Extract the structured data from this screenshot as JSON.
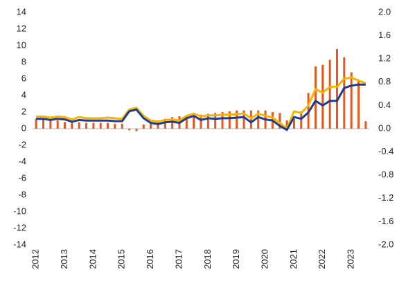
{
  "chart_data": {
    "type": "combo",
    "categories": [
      "2012",
      null,
      null,
      null,
      "2013",
      null,
      null,
      null,
      "2014",
      null,
      null,
      null,
      "2015",
      null,
      null,
      null,
      "2016",
      null,
      null,
      null,
      "2017",
      null,
      null,
      null,
      "2018",
      null,
      null,
      null,
      "2019",
      null,
      null,
      null,
      "2020",
      null,
      null,
      null,
      "2021",
      null,
      null,
      null,
      "2022",
      null,
      null,
      null,
      "2023",
      null,
      null
    ],
    "series": [
      {
        "type": "bar",
        "color": "#e8561e",
        "values": [
          1.2,
          1.1,
          1.0,
          1.0,
          0.8,
          0.8,
          0.8,
          0.7,
          0.7,
          0.7,
          0.7,
          0.6,
          0.6,
          -0.2,
          -0.3,
          0.5,
          0.7,
          1.0,
          1.2,
          1.4,
          1.5,
          1.6,
          1.6,
          1.7,
          1.8,
          1.9,
          2.0,
          2.1,
          2.2,
          2.2,
          2.2,
          2.2,
          2.2,
          2.0,
          1.9,
          1.0,
          1.2,
          2.1,
          4.3,
          7.5,
          7.7,
          8.3,
          9.6,
          8.6,
          6.8,
          5.8,
          0.9
        ]
      },
      {
        "type": "line",
        "axis": "y2",
        "color": "#f5b400",
        "values": [
          0.21,
          0.21,
          0.19,
          0.21,
          0.2,
          0.16,
          0.2,
          0.18,
          0.18,
          0.18,
          0.19,
          0.18,
          0.17,
          0.33,
          0.36,
          0.22,
          0.14,
          0.12,
          0.15,
          0.16,
          0.14,
          0.22,
          0.26,
          0.21,
          0.23,
          0.23,
          0.24,
          0.24,
          0.25,
          0.26,
          0.18,
          0.26,
          0.22,
          0.19,
          0.1,
          0.0,
          0.3,
          0.27,
          0.4,
          0.68,
          0.62,
          0.72,
          0.72,
          0.86,
          0.88,
          0.83,
          0.78
        ]
      },
      {
        "type": "line",
        "axis": "y2",
        "color": "#1d3a94",
        "values": [
          0.17,
          0.17,
          0.15,
          0.17,
          0.16,
          0.12,
          0.15,
          0.14,
          0.14,
          0.14,
          0.14,
          0.13,
          0.13,
          0.3,
          0.33,
          0.18,
          0.1,
          0.08,
          0.11,
          0.12,
          0.1,
          0.18,
          0.22,
          0.15,
          0.18,
          0.17,
          0.18,
          0.18,
          0.19,
          0.2,
          0.11,
          0.2,
          0.16,
          0.14,
          0.05,
          -0.02,
          0.2,
          0.17,
          0.28,
          0.48,
          0.4,
          0.48,
          0.48,
          0.7,
          0.74,
          0.76,
          0.76
        ]
      }
    ],
    "ylim": [
      -14,
      14
    ],
    "yticks": [
      -14,
      -12,
      -10,
      -8,
      -6,
      -4,
      -2,
      0,
      2,
      4,
      6,
      8,
      10,
      12,
      14
    ],
    "y2lim": [
      -2,
      2
    ],
    "y2ticks": [
      {
        "value": -2,
        "label": "-2.0"
      },
      -1.6,
      -1.2,
      -0.8,
      -0.4,
      {
        "value": 0,
        "label": "0.0"
      },
      0.4,
      0.8,
      1.2,
      1.6,
      {
        "value": 2,
        "label": "2.0"
      }
    ],
    "grid": false
  }
}
